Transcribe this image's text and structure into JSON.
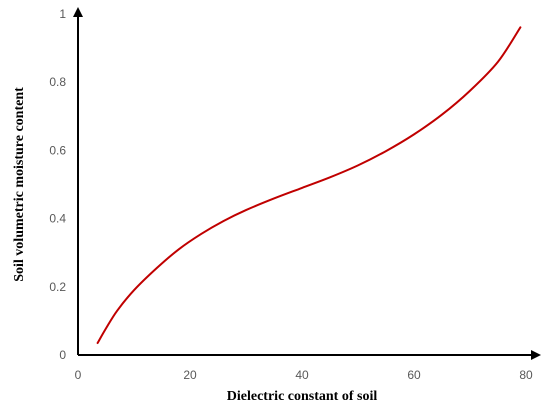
{
  "chart_data": {
    "type": "line",
    "title": "",
    "xlabel": "Dielectric constant of soil",
    "ylabel": "Soil volumetric moisture content",
    "xlim": [
      0,
      80
    ],
    "ylim": [
      0,
      1
    ],
    "x_ticks": [
      0,
      20,
      40,
      60,
      80
    ],
    "y_ticks": [
      0,
      0.2,
      0.4,
      0.6,
      0.8,
      1
    ],
    "x_tick_labels": [
      "0",
      "20",
      "40",
      "60",
      "80"
    ],
    "y_tick_labels": [
      "0",
      "0.2",
      "0.4",
      "0.6",
      "0.8",
      "1"
    ],
    "grid": false,
    "legend": "none",
    "series": [
      {
        "color": "#c00000",
        "x": [
          3.5,
          5,
          7,
          10,
          14,
          18,
          22,
          26,
          30,
          35,
          40,
          45,
          50,
          55,
          60,
          65,
          70,
          75,
          79
        ],
        "y": [
          0.035,
          0.078,
          0.13,
          0.19,
          0.254,
          0.31,
          0.355,
          0.393,
          0.425,
          0.459,
          0.49,
          0.521,
          0.556,
          0.598,
          0.647,
          0.705,
          0.775,
          0.86,
          0.961
        ]
      }
    ]
  }
}
